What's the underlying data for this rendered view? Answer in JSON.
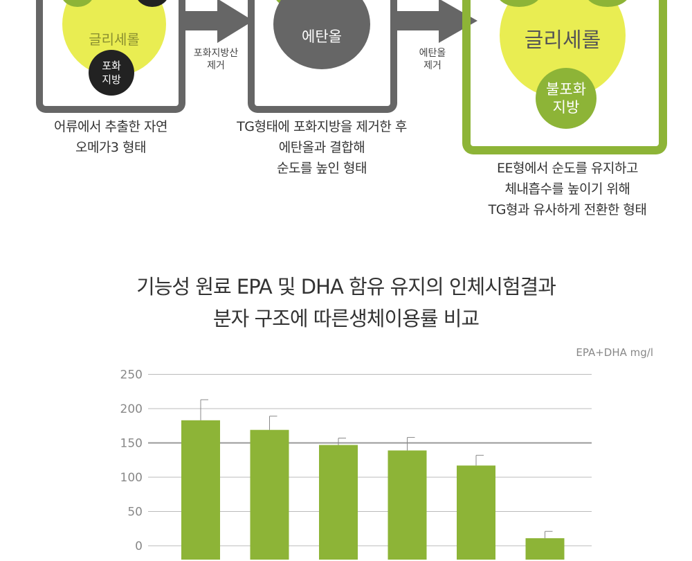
{
  "diagram": {
    "box1": {
      "main_circle": "글리세롤",
      "small_circle": "포화\n지방",
      "caption": "어류에서 추출한 자연\n오메가3 형태"
    },
    "arrow1_label": "포화지방산\n제거",
    "box2": {
      "main_circle": "에탄올",
      "caption": "TG형태에 포화지방을 제거한 후\n에탄올과 결합해\n순도를 높인 형태"
    },
    "arrow2_label": "에탄올\n제거",
    "box3": {
      "main_circle": "글리세롤",
      "small_circle": "불포화\n지방",
      "caption": "EE형에서 순도를 유지하고\n체내흡수를 높이기 위해\nTG형과 유사하게 전환한 형태"
    },
    "colors": {
      "yellow": "#e9ed52",
      "green": "#8db437",
      "dark": "#222222",
      "gray": "#666666",
      "green_frame": "#8db437"
    }
  },
  "title_line1": "기능성 원료 EPA 및 DHA 함유 유지의 인체시험결과",
  "title_line2": "분자 구조에 따른생체이용률 비교",
  "unit_label": "EPA+DHA mg/l",
  "chart_data": {
    "type": "bar",
    "title": "기능성 원료 EPA 및 DHA 함유 유지의 인체시험결과 분자 구조에 따른생체이용률 비교",
    "ylabel": "EPA+DHA mg/l",
    "ylim": [
      0,
      250
    ],
    "yticks": [
      0,
      50,
      100,
      150,
      200,
      250
    ],
    "grid": true,
    "bar_color": "#8db437",
    "series": [
      {
        "values": [
          183,
          169,
          147,
          139,
          117,
          11
        ],
        "errors": [
          30,
          20,
          10,
          19,
          15,
          10
        ]
      }
    ]
  }
}
